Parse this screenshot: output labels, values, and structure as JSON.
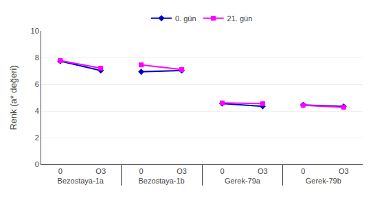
{
  "chart_data": {
    "type": "line",
    "ylabel": "Renk (a* değeri)",
    "groups": [
      "Bezostaya-1a",
      "Bezostaya-1b",
      "Gerek-79a",
      "Gerek-79b"
    ],
    "categories": [
      "0",
      "O3",
      "0",
      "O3",
      "0",
      "O3",
      "0",
      "O3"
    ],
    "series": [
      {
        "name": "0. gün",
        "color": "#0000CD",
        "marker": "diamond",
        "values": [
          7.73,
          7.03,
          6.93,
          7.03,
          4.55,
          4.35,
          4.45,
          4.33
        ]
      },
      {
        "name": "21. gün",
        "color": "#FF00FF",
        "marker": "square",
        "values": [
          7.77,
          7.2,
          7.45,
          7.1,
          4.6,
          4.55,
          4.42,
          4.27
        ]
      }
    ],
    "ylim": [
      0,
      10
    ],
    "yticks": [
      0,
      2,
      4,
      6,
      8,
      10
    ],
    "grid": true,
    "legend": "top"
  }
}
